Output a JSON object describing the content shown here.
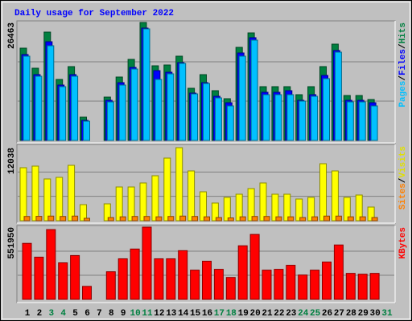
{
  "chart_data": [
    {
      "type": "bar",
      "title": "Daily usage for September 2022",
      "ylim": [
        0,
        26463
      ],
      "yticks": [
        26463
      ],
      "grid": true,
      "legend_separator": "/",
      "series": [
        {
          "name": "Hits",
          "color": "#008040",
          "values": [
            20702,
            16202,
            24303,
            13682,
            16562,
            5221,
            0,
            9721,
            14222,
            18183,
            26463,
            16742,
            16922,
            18902,
            11701,
            14762,
            11161,
            9361,
            20882,
            24123,
            12061,
            12061,
            12061,
            10261,
            12061,
            16562,
            21603,
            10081,
            10081,
            9181,
            0
          ]
        },
        {
          "name": "Files",
          "color": "#0000ff",
          "values": [
            19262,
            14762,
            22143,
            12421,
            14762,
            4501,
            0,
            9001,
            12962,
            16382,
            25203,
            15662,
            15302,
            17462,
            10621,
            12962,
            9901,
            8461,
            19622,
            23043,
            10801,
            10801,
            11161,
            9001,
            10261,
            14582,
            20162,
            9001,
            9001,
            8461,
            0
          ]
        },
        {
          "name": "Pages",
          "color": "#00c0ff",
          "values": [
            18902,
            14402,
            21242,
            12061,
            14402,
            4320,
            0,
            8641,
            12421,
            16022,
            25023,
            13682,
            14942,
            17282,
            10441,
            12781,
            9541,
            7741,
            18902,
            22503,
            10261,
            10261,
            10261,
            8821,
            9901,
            13862,
            19802,
            8641,
            8641,
            7741,
            0
          ]
        }
      ]
    },
    {
      "type": "bar",
      "ylim": [
        0,
        12038
      ],
      "yticks": [
        12038
      ],
      "legend_separator": "/",
      "series": [
        {
          "name": "Visits",
          "color": "#ffff00",
          "values": [
            8732,
            8996,
            6880,
            7144,
            9129,
            2646,
            0,
            2778,
            5557,
            5557,
            6218,
            7409,
            10319,
            12038,
            8203,
            4763,
            2911,
            3837,
            4366,
            5292,
            6218,
            4366,
            4366,
            3572,
            3837,
            9393,
            8203,
            3837,
            4234,
            2249,
            0
          ]
        },
        {
          "name": "Sites",
          "color": "#ff8000",
          "values": [
            700,
            720,
            760,
            700,
            760,
            400,
            0,
            520,
            640,
            700,
            700,
            640,
            700,
            760,
            700,
            640,
            520,
            460,
            640,
            700,
            700,
            640,
            640,
            520,
            640,
            760,
            760,
            640,
            640,
            520,
            0
          ]
        }
      ]
    },
    {
      "type": "bar",
      "ylim": [
        0,
        551950
      ],
      "yticks": [
        551950
      ],
      "categories": [
        "1",
        "2",
        "3",
        "4",
        "5",
        "6",
        "7",
        "8",
        "9",
        "10",
        "11",
        "12",
        "13",
        "14",
        "15",
        "16",
        "17",
        "18",
        "19",
        "20",
        "21",
        "22",
        "23",
        "24",
        "25",
        "26",
        "27",
        "28",
        "29",
        "30",
        "31"
      ],
      "highlight": [
        2,
        3,
        9,
        10,
        16,
        17,
        23,
        24,
        30
      ],
      "highlight_color": "#008040",
      "series": [
        {
          "name": "KBytes",
          "color": "#ff0000",
          "values": [
            427938,
            322504,
            533372,
            279090,
            334908,
            99232,
            0,
            210868,
            310100,
            384524,
            551950,
            310100,
            310100,
            372120,
            223272,
            291494,
            229474,
            167454,
            409332,
            496160,
            223272,
            229474,
            260484,
            186060,
            223272,
            285292,
            415534,
            198464,
            192262,
            198464,
            0
          ]
        }
      ]
    }
  ]
}
